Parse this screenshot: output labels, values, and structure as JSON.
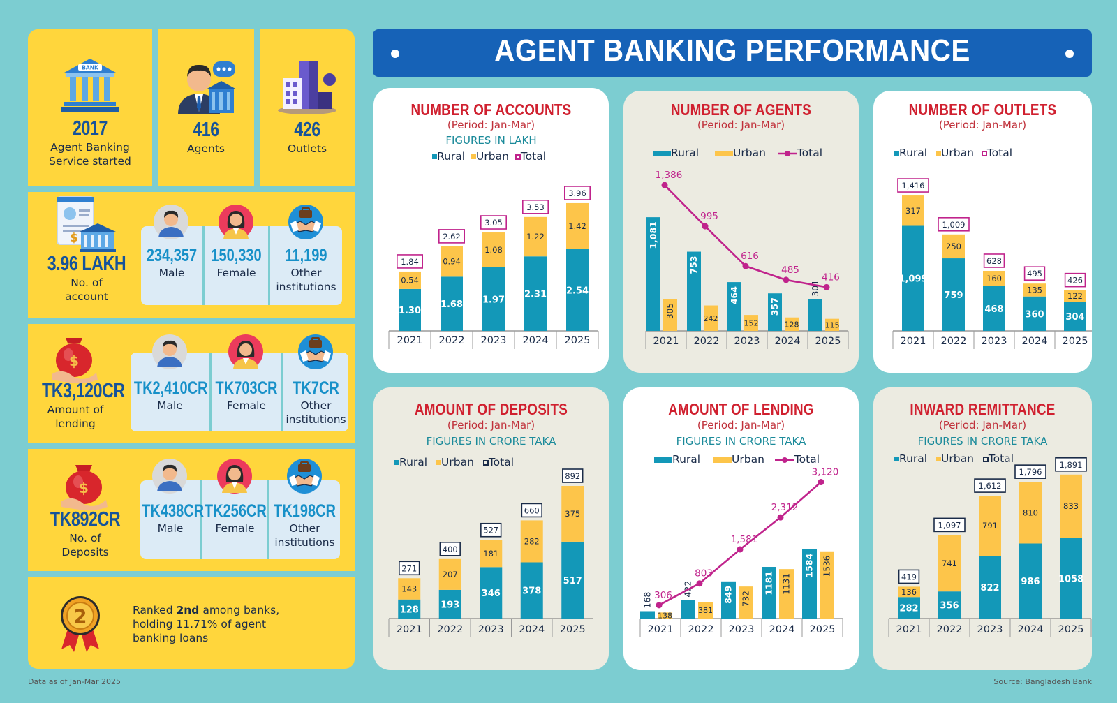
{
  "title": "AGENT BANKING PERFORMANCE",
  "footer": {
    "note": "Data as of Jan-Mar 2025",
    "source": "Source: Bangladesh Bank"
  },
  "summary": {
    "started_year": "2017",
    "started_label": "Agent Banking Service started",
    "agents_value": "416",
    "agents_label": "Agents",
    "outlets_value": "426",
    "outlets_label": "Outlets"
  },
  "accounts": {
    "total": "3.96 LAKH",
    "label": "No. of account",
    "male_value": "234,357",
    "male_label": "Male",
    "female_value": "150,330",
    "female_label": "Female",
    "other_value": "11,199",
    "other_label": "Other institutions"
  },
  "lending": {
    "total": "TK3,120CR",
    "label": "Amount of lending",
    "male_value": "TK2,410CR",
    "male_label": "Male",
    "female_value": "TK703CR",
    "female_label": "Female",
    "other_value": "TK7CR",
    "other_label": "Other institutions"
  },
  "deposits": {
    "total": "TK892CR",
    "label": "No. of Deposits",
    "male_value": "TK438CR",
    "male_label": "Male",
    "female_value": "TK256CR",
    "female_label": "Female",
    "other_value": "TK198CR",
    "other_label": "Other institutions"
  },
  "rank": {
    "badge": "2",
    "text_pre": "Ranked ",
    "text_bold": "2nd",
    "text_post": " among banks, holding 11.71% of agent banking loans"
  },
  "legend": {
    "rural": "Rural",
    "urban": "Urban",
    "total": "Total"
  },
  "colors": {
    "rural": "#1398b8",
    "urban": "#fdc54a",
    "total": "#c0238c",
    "red": "#d0202f"
  },
  "chart_data": [
    {
      "id": "accounts",
      "type": "bar",
      "stacked": true,
      "title": "NUMBER OF ACCOUNTS",
      "period": "(Period: Jan-Mar)",
      "units": "FIGURES IN LAKH",
      "categories": [
        "2021",
        "2022",
        "2023",
        "2024",
        "2025"
      ],
      "series": [
        {
          "name": "Rural",
          "values": [
            1.3,
            1.68,
            1.97,
            2.31,
            2.54
          ]
        },
        {
          "name": "Urban",
          "values": [
            0.54,
            0.94,
            1.08,
            1.22,
            1.42
          ]
        }
      ],
      "totals": [
        1.84,
        2.62,
        3.05,
        3.53,
        3.96
      ],
      "labels": {
        "rural": [
          "1.30",
          "1.68",
          "1.97",
          "2.31",
          "2.54"
        ],
        "urban": [
          "0.54",
          "0.94",
          "1.08",
          "1.22",
          "1.42"
        ],
        "total": [
          "1.84",
          "2.62",
          "3.05",
          "3.53",
          "3.96"
        ]
      },
      "ylim": [
        0,
        4.5
      ]
    },
    {
      "id": "agents",
      "type": "bar",
      "stacked": false,
      "total_line": true,
      "title": "NUMBER OF  AGENTS",
      "period": "(Period: Jan-Mar)",
      "categories": [
        "2021",
        "2022",
        "2023",
        "2024",
        "2025"
      ],
      "series": [
        {
          "name": "Rural",
          "values": [
            1081,
            753,
            464,
            357,
            301
          ]
        },
        {
          "name": "Urban",
          "values": [
            305,
            242,
            152,
            128,
            115
          ]
        }
      ],
      "totals": [
        1386,
        995,
        616,
        485,
        416
      ],
      "labels": {
        "rural": [
          "1,081",
          "753",
          "464",
          "357",
          "301"
        ],
        "urban": [
          "305",
          "242",
          "152",
          "128",
          "115"
        ],
        "total": [
          "1,386",
          "995",
          "616",
          "485",
          "416"
        ]
      },
      "ylim": [
        0,
        1500
      ]
    },
    {
      "id": "outlets",
      "type": "bar",
      "stacked": true,
      "title": "NUMBER OF  OUTLETS",
      "period": "(Period: Jan-Mar)",
      "categories": [
        "2021",
        "2022",
        "2023",
        "2024",
        "2025"
      ],
      "series": [
        {
          "name": "Rural",
          "values": [
            1099,
            759,
            468,
            360,
            304
          ]
        },
        {
          "name": "Urban",
          "values": [
            317,
            250,
            160,
            135,
            122
          ]
        }
      ],
      "totals": [
        1416,
        1009,
        628,
        495,
        426
      ],
      "labels": {
        "rural": [
          "1,099",
          "759",
          "468",
          "360",
          "304"
        ],
        "urban": [
          "317",
          "250",
          "160",
          "135",
          "122"
        ],
        "total": [
          "1,416",
          "1,009",
          "628",
          "495",
          "426"
        ]
      },
      "ylim": [
        0,
        1650
      ]
    },
    {
      "id": "deposits",
      "type": "bar",
      "stacked": true,
      "title": "AMOUNT OF DEPOSITS",
      "period": "(Period: Jan-Mar)",
      "units": "FIGURES IN CRORE TAKA",
      "categories": [
        "2021",
        "2022",
        "2023",
        "2024",
        "2025"
      ],
      "series": [
        {
          "name": "Rural",
          "values": [
            128,
            193,
            346,
            378,
            517
          ]
        },
        {
          "name": "Urban",
          "values": [
            143,
            207,
            181,
            282,
            375
          ]
        }
      ],
      "totals": [
        271,
        400,
        527,
        660,
        892
      ],
      "labels": {
        "rural": [
          "128",
          "193",
          "346",
          "378",
          "517"
        ],
        "urban": [
          "143",
          "207",
          "181",
          "282",
          "375"
        ],
        "total": [
          "271",
          "400",
          "527",
          "660",
          "892"
        ]
      },
      "ylim": [
        0,
        1000
      ]
    },
    {
      "id": "lending",
      "type": "bar",
      "stacked": false,
      "total_line": true,
      "title": "AMOUNT OF LENDING",
      "period": "(Period: Jan-Mar)",
      "units": "FIGURES IN CRORE TAKA",
      "categories": [
        "2021",
        "2022",
        "2023",
        "2024",
        "2025"
      ],
      "series": [
        {
          "name": "Rural",
          "values": [
            168,
            422,
            849,
            1181,
            1584
          ]
        },
        {
          "name": "Urban",
          "values": [
            138,
            381,
            732,
            1131,
            1536
          ]
        }
      ],
      "totals": [
        306,
        803,
        1581,
        2312,
        3120
      ],
      "labels": {
        "rural": [
          "168",
          "422",
          "849",
          "1181",
          "1584"
        ],
        "urban": [
          "138",
          "381",
          "732",
          "1131",
          "1536"
        ],
        "total": [
          "306",
          "803",
          "1,581",
          "2,312",
          "3,120"
        ]
      },
      "ylim": [
        0,
        3400
      ]
    },
    {
      "id": "remittance",
      "type": "bar",
      "stacked": true,
      "title": "INWARD REMITTANCE",
      "period": "(Period: Jan-Mar)",
      "units": "FIGURES IN CRORE TAKA",
      "categories": [
        "2021",
        "2022",
        "2023",
        "2024",
        "2025"
      ],
      "series": [
        {
          "name": "Rural",
          "values": [
            282,
            356,
            822,
            986,
            1058
          ]
        },
        {
          "name": "Urban",
          "values": [
            136,
            741,
            791,
            810,
            833
          ]
        }
      ],
      "totals": [
        419,
        1097,
        1612,
        1796,
        1891
      ],
      "labels": {
        "rural": [
          "282",
          "356",
          "822",
          "986",
          "1058"
        ],
        "urban": [
          "136",
          "741",
          "791",
          "810",
          "833"
        ],
        "total": [
          "419",
          "1,097",
          "1,612",
          "1,796",
          "1,891"
        ]
      },
      "ylim": [
        0,
        2100
      ]
    }
  ]
}
